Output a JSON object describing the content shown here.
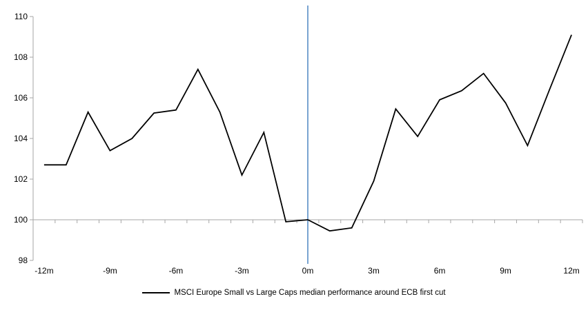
{
  "chart_data": {
    "type": "line",
    "title": "",
    "xlabel": "",
    "ylabel": "",
    "x": [
      -12,
      -11,
      -10,
      -9,
      -8,
      -7,
      -6,
      -5,
      -4,
      -3,
      -2,
      -1,
      0,
      1,
      2,
      3,
      4,
      5,
      6,
      7,
      8,
      9,
      10,
      11,
      12
    ],
    "series": [
      {
        "name": "MSCI Europe Small vs Large Caps median performance around ECB first cut",
        "color": "#000000",
        "values": [
          102.7,
          102.7,
          105.3,
          103.4,
          104.0,
          105.25,
          105.4,
          107.4,
          105.3,
          102.2,
          104.3,
          99.9,
          100.0,
          99.45,
          99.6,
          101.9,
          105.45,
          104.1,
          105.9,
          106.35,
          107.2,
          105.75,
          103.65,
          106.4,
          109.1
        ]
      }
    ],
    "ylim": [
      98,
      110
    ],
    "y_ticks": [
      98,
      100,
      102,
      104,
      106,
      108,
      110
    ],
    "y_tick_labels": [
      "98",
      "100",
      "102",
      "104",
      "106",
      "108",
      "110"
    ],
    "x_tick_positions": [
      -12,
      -9,
      -6,
      -3,
      0,
      3,
      6,
      9,
      12
    ],
    "x_tick_labels": [
      "-12m",
      "-9m",
      "-6m",
      "-3m",
      "0m",
      "3m",
      "6m",
      "9m",
      "12m"
    ],
    "baseline_value": 100,
    "event_line_x": 0,
    "grid": "baseline-only",
    "legend": {
      "position": "bottom-center",
      "label": "MSCI Europe Small vs Large Caps median performance around ECB first cut"
    },
    "colors": {
      "axis": "#a6a6a6",
      "event_line": "#78a3d1",
      "series_line": "#000000",
      "text": "#000000"
    }
  }
}
